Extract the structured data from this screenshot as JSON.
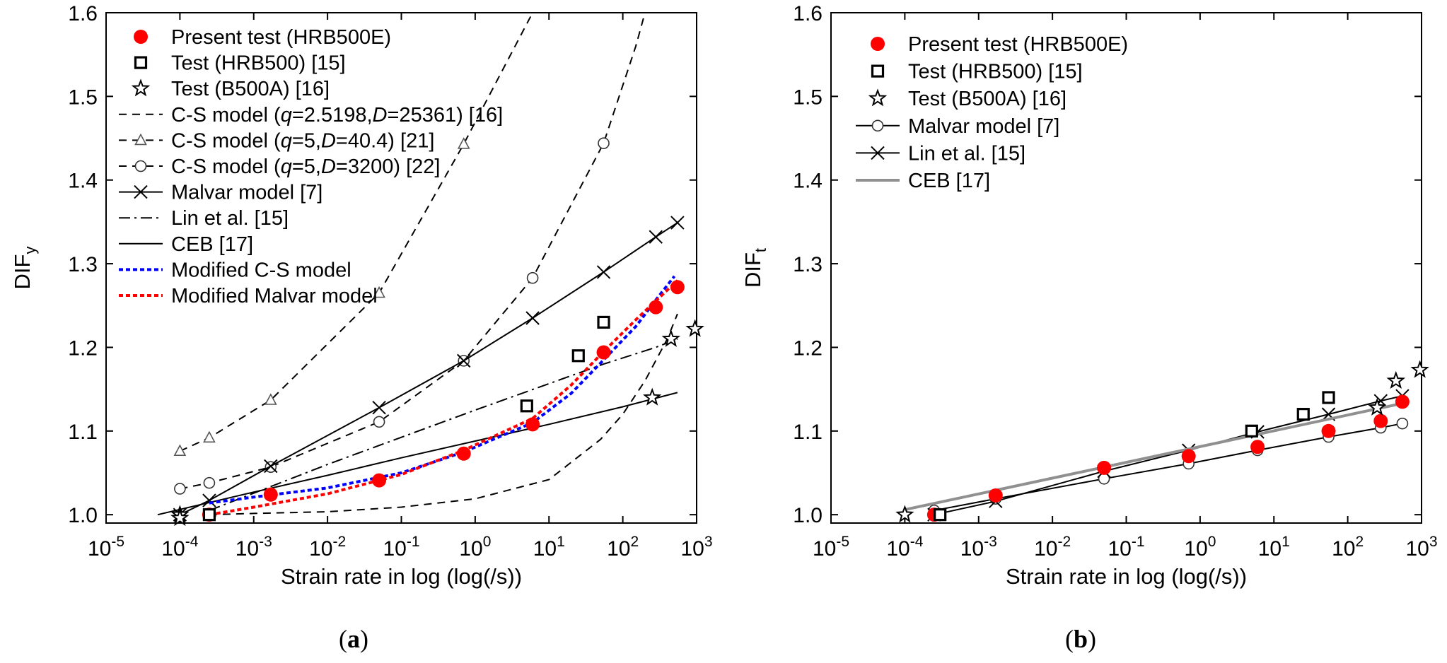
{
  "chart_data": [
    {
      "id": "a",
      "type": "scatter",
      "caption_prefix": "(",
      "caption_letter": "a",
      "caption_suffix": ")",
      "ylabel_main": "DIF",
      "ylabel_sub": "y",
      "xlabel": "Strain rate in log (log(/s))",
      "xlim_exp": [
        -5,
        3
      ],
      "ylim": [
        0.99,
        1.6
      ],
      "x_ticks": [
        -5,
        -4,
        -3,
        -2,
        -1,
        0,
        1,
        2,
        3
      ],
      "x_tick_base": "10",
      "y_ticks": [
        1.0,
        1.1,
        1.2,
        1.3,
        1.4,
        1.5,
        1.6
      ],
      "y_tick_labels": [
        "1.0",
        "1.1",
        "1.2",
        "1.3",
        "1.4",
        "1.5",
        "1.6"
      ],
      "legend_position": "top-left",
      "series": [
        {
          "name": "Present test (HRB500E)",
          "kind": "points",
          "marker": "dot",
          "color": "#ff0000",
          "x": [
            0.00025,
            0.0017,
            0.05,
            0.7,
            6,
            55,
            280,
            550
          ],
          "y": [
            1.0,
            1.024,
            1.041,
            1.073,
            1.108,
            1.194,
            1.248,
            1.272
          ]
        },
        {
          "name": "Test (HRB500) [15]",
          "kind": "points",
          "marker": "square",
          "color": "#000000",
          "x": [
            0.00025,
            5,
            25,
            55
          ],
          "y": [
            1.0,
            1.13,
            1.19,
            1.23
          ]
        },
        {
          "name": "Test (B500A) [16]",
          "kind": "points",
          "marker": "star",
          "color": "#000000",
          "x": [
            0.0001,
            0.0001,
            250,
            450,
            950
          ],
          "y": [
            1.0,
            0.996,
            1.14,
            1.21,
            1.222
          ]
        },
        {
          "name": "C-S model (q=2.5198,D=25361) [16]",
          "kind": "line",
          "dash": "11,8",
          "color": "#000000",
          "marker": "none",
          "x": [
            0.00025,
            0.001,
            0.01,
            0.1,
            1,
            10,
            50,
            100,
            200,
            400,
            550
          ],
          "y": [
            1.0,
            1.0015,
            1.0035,
            1.009,
            1.019,
            1.042,
            1.09,
            1.12,
            1.16,
            1.21,
            1.24
          ]
        },
        {
          "name": "C-S model (q=5,D=40.4) [21]",
          "kind": "line",
          "dash": "11,8",
          "color": "#000000",
          "marker": "triangle",
          "x": [
            0.0001,
            0.00025,
            0.0017,
            0.05,
            0.7,
            6,
            10
          ],
          "y": [
            1.076,
            1.092,
            1.137,
            1.265,
            1.443,
            1.6,
            1.67
          ],
          "marker_x": [
            0.0001,
            0.00025,
            0.0017,
            0.05,
            0.7
          ],
          "marker_y": [
            1.076,
            1.092,
            1.137,
            1.265,
            1.443
          ]
        },
        {
          "name": "C-S model (q=5,D=3200) [22]",
          "kind": "line",
          "dash": "11,8",
          "color": "#000000",
          "marker": "circle",
          "x": [
            0.0001,
            0.00025,
            0.0017,
            0.05,
            0.7,
            6,
            55,
            150,
            200
          ],
          "y": [
            1.031,
            1.038,
            1.057,
            1.111,
            1.184,
            1.283,
            1.444,
            1.56,
            1.6
          ],
          "marker_x": [
            0.0001,
            0.00025,
            0.0017,
            0.05,
            0.7,
            6,
            55
          ],
          "marker_y": [
            1.031,
            1.038,
            1.057,
            1.111,
            1.184,
            1.283,
            1.444
          ]
        },
        {
          "name": "Malvar model [7]",
          "kind": "line",
          "dash": "",
          "color": "#000000",
          "marker": "x",
          "x": [
            0.0001,
            0.00025,
            0.0017,
            0.05,
            0.7,
            6,
            55,
            280,
            550
          ],
          "y": [
            1.0,
            1.017,
            1.058,
            1.128,
            1.184,
            1.235,
            1.29,
            1.332,
            1.349
          ],
          "marker_x": [
            0.0001,
            0.00025,
            0.0017,
            0.05,
            0.7,
            6,
            55,
            280,
            550
          ],
          "marker_y": [
            1.0,
            1.017,
            1.058,
            1.128,
            1.184,
            1.235,
            1.29,
            1.332,
            1.349
          ]
        },
        {
          "name": "Lin et al. [15]",
          "kind": "line",
          "dash": "16,6,3,6",
          "color": "#000000",
          "marker": "none",
          "x": [
            0.00025,
            0.01,
            1,
            55,
            280,
            550
          ],
          "y": [
            1.005,
            1.06,
            1.125,
            1.18,
            1.2,
            1.21
          ]
        },
        {
          "name": "CEB [17]",
          "kind": "line",
          "dash": "",
          "color": "#000000",
          "marker": "none",
          "x": [
            5e-05,
            0.001,
            0.01,
            0.1,
            1,
            10,
            100,
            550
          ],
          "y": [
            1.0,
            1.027,
            1.047,
            1.068,
            1.088,
            1.108,
            1.129,
            1.146
          ]
        },
        {
          "name": "Modified C-S model",
          "kind": "line",
          "dash": "6,4",
          "width": 4,
          "color": "#0000ff",
          "marker": "none",
          "x": [
            0.00025,
            0.001,
            0.01,
            0.1,
            0.7,
            6,
            20,
            55,
            150,
            300,
            500
          ],
          "y": [
            1.014,
            1.021,
            1.032,
            1.05,
            1.075,
            1.11,
            1.145,
            1.185,
            1.225,
            1.26,
            1.285
          ]
        },
        {
          "name": "Modified Malvar model",
          "kind": "line",
          "dash": "6,4",
          "width": 4,
          "color": "#ff0000",
          "marker": "none",
          "x": [
            0.00025,
            0.001,
            0.01,
            0.1,
            0.7,
            6,
            20,
            55,
            150,
            300,
            550
          ],
          "y": [
            1.0,
            1.009,
            1.025,
            1.048,
            1.077,
            1.115,
            1.155,
            1.195,
            1.233,
            1.258,
            1.28
          ]
        }
      ]
    },
    {
      "id": "b",
      "type": "scatter",
      "caption_prefix": "(",
      "caption_letter": "b",
      "caption_suffix": ")",
      "ylabel_main": "DIF",
      "ylabel_sub": "t",
      "xlabel": "Strain rate in log (log(/s))",
      "xlim_exp": [
        -5,
        3
      ],
      "ylim": [
        0.99,
        1.6
      ],
      "x_ticks": [
        -5,
        -4,
        -3,
        -2,
        -1,
        0,
        1,
        2,
        3
      ],
      "x_tick_base": "10",
      "y_ticks": [
        1.0,
        1.1,
        1.2,
        1.3,
        1.4,
        1.5,
        1.6
      ],
      "y_tick_labels": [
        "1.0",
        "1.1",
        "1.2",
        "1.3",
        "1.4",
        "1.5",
        "1.6"
      ],
      "legend_position": "top-left",
      "series": [
        {
          "name": "Present test (HRB500E)",
          "kind": "points",
          "marker": "dot",
          "color": "#ff0000",
          "x": [
            0.00025,
            0.0017,
            0.05,
            0.7,
            6,
            55,
            280,
            550
          ],
          "y": [
            1.0,
            1.023,
            1.056,
            1.07,
            1.081,
            1.1,
            1.112,
            1.135
          ]
        },
        {
          "name": "Test (HRB500) [15]",
          "kind": "points",
          "marker": "square",
          "color": "#000000",
          "x": [
            0.0003,
            5,
            25,
            55
          ],
          "y": [
            1.0,
            1.1,
            1.12,
            1.14
          ]
        },
        {
          "name": "Test (B500A) [16]",
          "kind": "points",
          "marker": "star",
          "color": "#000000",
          "x": [
            0.0001,
            250,
            450,
            950
          ],
          "y": [
            1.0,
            1.128,
            1.16,
            1.173
          ]
        },
        {
          "name": "Malvar model [7]",
          "kind": "line",
          "dash": "",
          "color": "#000000",
          "marker": "circle",
          "x": [
            0.00025,
            0.0017,
            0.05,
            0.7,
            6,
            55,
            280,
            550
          ],
          "y": [
            1.005,
            1.019,
            1.043,
            1.061,
            1.077,
            1.093,
            1.104,
            1.109
          ],
          "marker_x": [
            0.00025,
            0.0017,
            0.05,
            0.7,
            6,
            55,
            280,
            550
          ],
          "marker_y": [
            1.005,
            1.019,
            1.043,
            1.061,
            1.077,
            1.093,
            1.104,
            1.109
          ]
        },
        {
          "name": "Lin et al. [15]",
          "kind": "line",
          "dash": "",
          "color": "#000000",
          "marker": "x",
          "x": [
            0.00025,
            0.0017,
            0.05,
            0.7,
            6,
            55,
            280,
            550
          ],
          "y": [
            1.0,
            1.016,
            1.052,
            1.077,
            1.099,
            1.12,
            1.136,
            1.142
          ],
          "marker_x": [
            0.00025,
            0.0017,
            0.05,
            0.7,
            6,
            55,
            280,
            550
          ],
          "marker_y": [
            1.0,
            1.016,
            1.052,
            1.077,
            1.099,
            1.12,
            1.136,
            1.142
          ]
        },
        {
          "name": "CEB [17]",
          "kind": "line",
          "dash": "",
          "width": 4,
          "color": "#909090",
          "marker": "none",
          "x": [
            0.0001,
            550
          ],
          "y": [
            1.006,
            1.133
          ]
        }
      ]
    }
  ],
  "legend_a": [
    {
      "marker": "dot",
      "color": "#ff0000",
      "line": "none",
      "parts": [
        {
          "t": "Present test (HRB500E)"
        }
      ]
    },
    {
      "marker": "square",
      "color": "#000000",
      "line": "none",
      "parts": [
        {
          "t": "Test (HRB500) [15]"
        }
      ]
    },
    {
      "marker": "star",
      "color": "#000000",
      "line": "none",
      "parts": [
        {
          "t": "Test (B500A) [16]"
        }
      ]
    },
    {
      "marker": "none",
      "color": "#000000",
      "line": "dash",
      "parts": [
        {
          "t": "C-S model ("
        },
        {
          "t": "q",
          "i": true
        },
        {
          "t": "=2.5198,"
        },
        {
          "t": "D",
          "i": true
        },
        {
          "t": "=25361) [16]"
        }
      ]
    },
    {
      "marker": "triangle",
      "color": "#000000",
      "line": "dash",
      "parts": [
        {
          "t": "C-S model ("
        },
        {
          "t": "q",
          "i": true
        },
        {
          "t": "=5,"
        },
        {
          "t": "D",
          "i": true
        },
        {
          "t": "=40.4) [21]"
        }
      ]
    },
    {
      "marker": "circle",
      "color": "#000000",
      "line": "dash",
      "parts": [
        {
          "t": "C-S model ("
        },
        {
          "t": "q",
          "i": true
        },
        {
          "t": "=5,"
        },
        {
          "t": "D",
          "i": true
        },
        {
          "t": "=3200) [22]"
        }
      ]
    },
    {
      "marker": "x",
      "color": "#000000",
      "line": "solid",
      "parts": [
        {
          "t": "Malvar model [7]"
        }
      ]
    },
    {
      "marker": "none",
      "color": "#000000",
      "line": "dashdot",
      "parts": [
        {
          "t": "Lin et al. [15]"
        }
      ]
    },
    {
      "marker": "none",
      "color": "#000000",
      "line": "solid",
      "parts": [
        {
          "t": "CEB [17]"
        }
      ]
    },
    {
      "marker": "none",
      "color": "#0000ff",
      "line": "dotted",
      "parts": [
        {
          "t": "Modified C-S model"
        }
      ]
    },
    {
      "marker": "none",
      "color": "#ff0000",
      "line": "dotted",
      "parts": [
        {
          "t": "Modified Malvar model"
        }
      ]
    }
  ],
  "legend_b": [
    {
      "marker": "dot",
      "color": "#ff0000",
      "line": "none",
      "parts": [
        {
          "t": "Present test (HRB500E)"
        }
      ]
    },
    {
      "marker": "square",
      "color": "#000000",
      "line": "none",
      "parts": [
        {
          "t": "Test (HRB500) [15]"
        }
      ]
    },
    {
      "marker": "star",
      "color": "#000000",
      "line": "none",
      "parts": [
        {
          "t": "Test (B500A) [16]"
        }
      ]
    },
    {
      "marker": "circle",
      "color": "#000000",
      "line": "solid",
      "parts": [
        {
          "t": "Malvar model [7]"
        }
      ]
    },
    {
      "marker": "x",
      "color": "#000000",
      "line": "solid",
      "parts": [
        {
          "t": "Lin et al. [15]"
        }
      ]
    },
    {
      "marker": "none",
      "color": "#909090",
      "line": "gray",
      "parts": [
        {
          "t": "CEB [17]"
        }
      ]
    }
  ]
}
